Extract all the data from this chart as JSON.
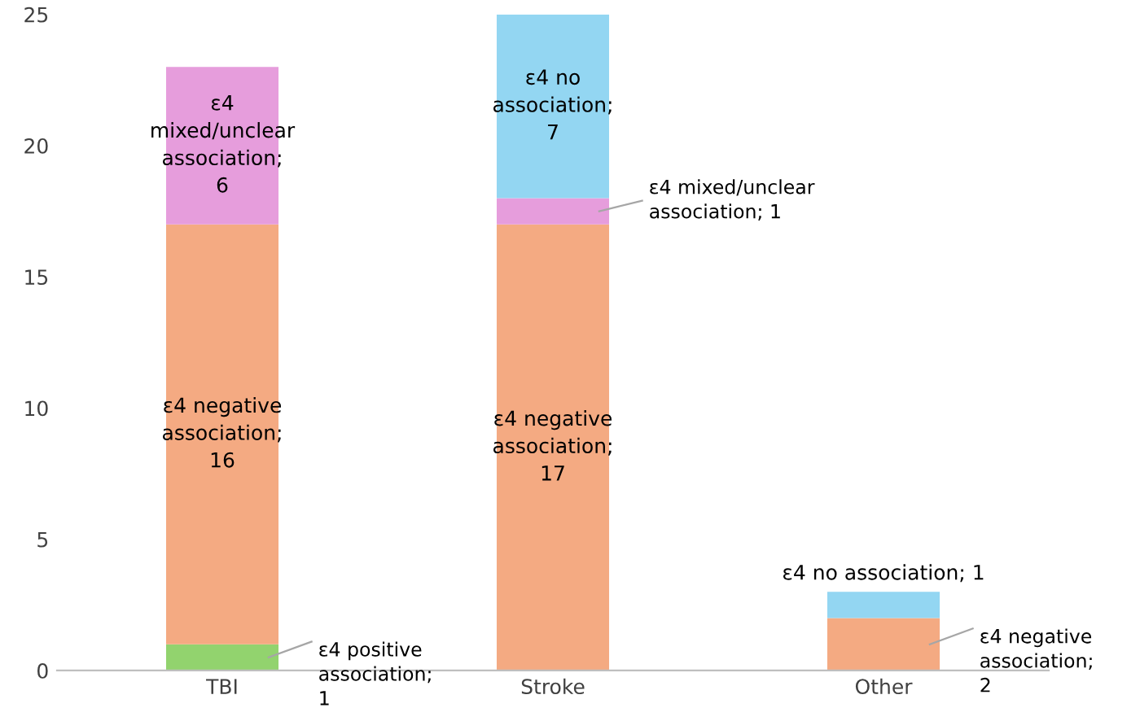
{
  "chart_data": {
    "type": "bar",
    "stacked": true,
    "categories": [
      "TBI",
      "Stroke",
      "Other"
    ],
    "ylim": [
      0,
      25
    ],
    "yticks": [
      0,
      5,
      10,
      15,
      20,
      25
    ],
    "grid": false,
    "legend": false,
    "series": [
      {
        "color": "#92d36e",
        "values": [
          1,
          0,
          0
        ],
        "value_labels": [
          "ε4 positive association; 1",
          null,
          null
        ]
      },
      {
        "color": "#f4aa82",
        "values": [
          16,
          17,
          2
        ],
        "value_labels": [
          "ε4 negative association; 16",
          "ε4 negative association; 17",
          "ε4 negative association; 2"
        ]
      },
      {
        "color": "#e69ddc",
        "values": [
          6,
          1,
          0
        ],
        "value_labels": [
          "ε4 mixed/unclear association; 6",
          "ε4 mixed/unclear association; 1",
          null
        ]
      },
      {
        "color": "#93d6f2",
        "values": [
          0,
          7,
          1
        ],
        "value_labels": [
          null,
          "ε4 no association; 7",
          "ε4 no association; 1"
        ]
      }
    ]
  }
}
